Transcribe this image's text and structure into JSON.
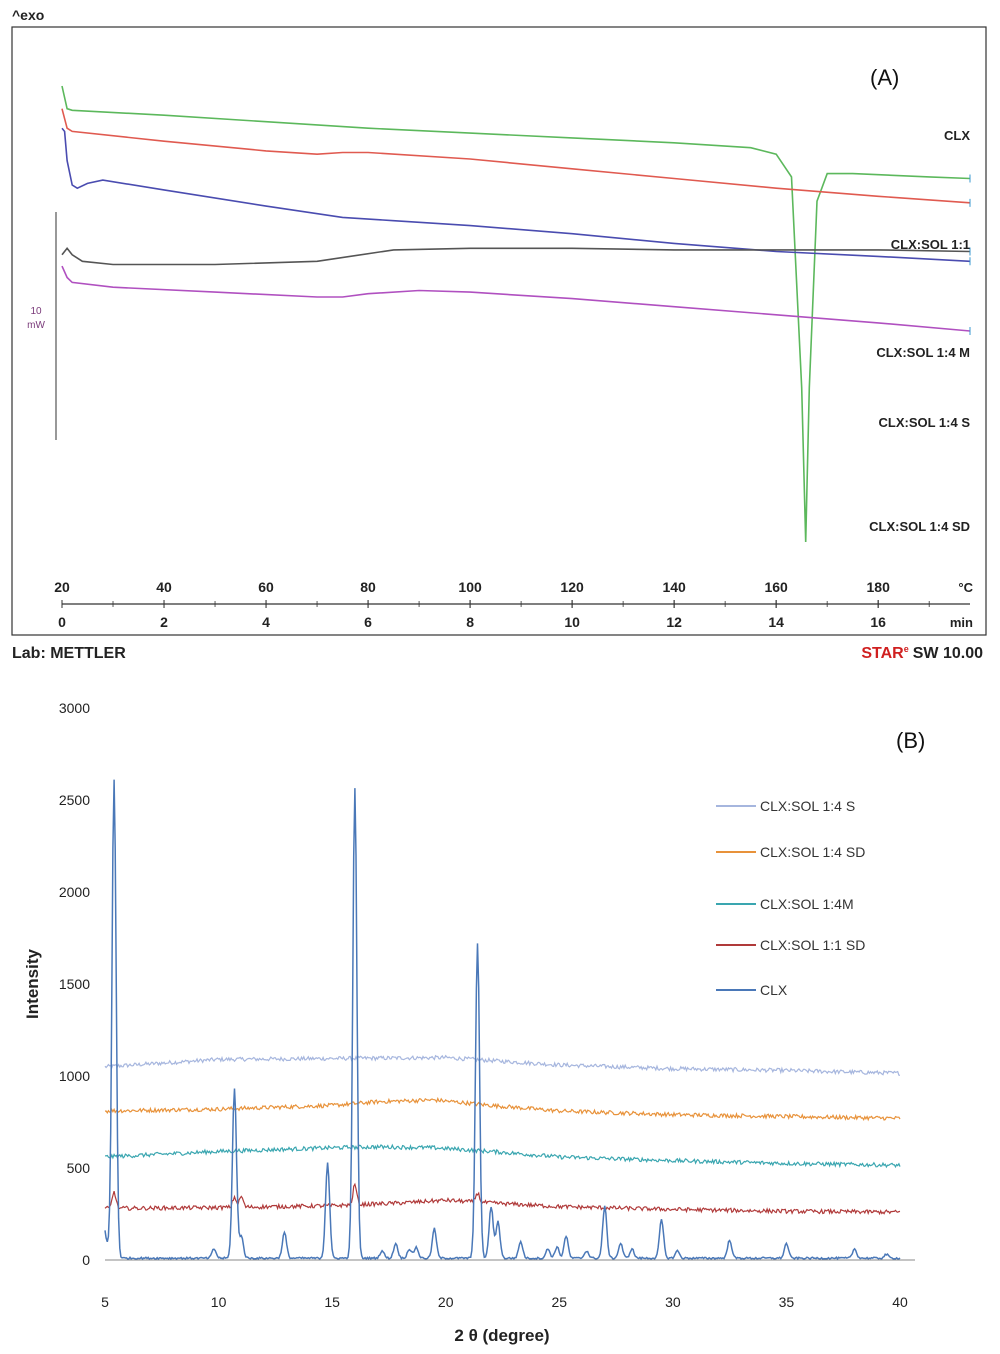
{
  "panelA": {
    "header": "^exo",
    "panel_letter": "(A)",
    "scale_value": "10",
    "scale_unit": "mW",
    "footer_left": "Lab: METTLER",
    "footer_right_brand": [
      "S",
      "TA",
      "R",
      "e"
    ],
    "footer_right_text": "SW 10.00"
  },
  "panelB": {
    "panel_letter": "(B)"
  },
  "chart_data": [
    {
      "type": "line",
      "panel": "A",
      "x_units": [
        "°C",
        "min"
      ],
      "x_temperature_ticks": [
        20,
        40,
        60,
        80,
        100,
        120,
        140,
        160,
        180
      ],
      "x_time_ticks": [
        0,
        2,
        4,
        6,
        8,
        10,
        12,
        14,
        16
      ],
      "xlim_temperature": [
        20,
        198
      ],
      "xlim_time": [
        0,
        17.8
      ],
      "colors": {
        "CLX": "#5cb85c",
        "CLX:SOL 1:1": "#e05a50",
        "CLX:SOL 1:4 M": "#4a4cb0",
        "CLX:SOL 1:4 S": "#555555",
        "CLX:SOL 1:4 SD": "#b050c0"
      },
      "series": [
        {
          "name": "CLX",
          "points": [
            [
              20,
              86
            ],
            [
              21,
              72
            ],
            [
              22,
              71
            ],
            [
              40,
              68
            ],
            [
              60,
              64
            ],
            [
              80,
              60
            ],
            [
              100,
              57
            ],
            [
              120,
              54
            ],
            [
              140,
              51
            ],
            [
              155,
              48
            ],
            [
              160,
              44
            ],
            [
              163,
              30
            ],
            [
              165,
              -100
            ],
            [
              165.8,
              -195
            ],
            [
              166.5,
              -100
            ],
            [
              168,
              15
            ],
            [
              170,
              32
            ],
            [
              175,
              32
            ],
            [
              190,
              30
            ],
            [
              198,
              29
            ]
          ]
        },
        {
          "name": "CLX:SOL 1:1",
          "points": [
            [
              20,
              72
            ],
            [
              21,
              60
            ],
            [
              22,
              58
            ],
            [
              40,
              52
            ],
            [
              60,
              46
            ],
            [
              70,
              44
            ],
            [
              75,
              45
            ],
            [
              80,
              45
            ],
            [
              100,
              41
            ],
            [
              120,
              35
            ],
            [
              140,
              29
            ],
            [
              160,
              23
            ],
            [
              180,
              18
            ],
            [
              198,
              14
            ]
          ]
        },
        {
          "name": "CLX:SOL 1:4 M",
          "points": [
            [
              20,
              60
            ],
            [
              20.5,
              58
            ],
            [
              21,
              40
            ],
            [
              22,
              25
            ],
            [
              23,
              23
            ],
            [
              25,
              26
            ],
            [
              28,
              28
            ],
            [
              40,
              22
            ],
            [
              60,
              12
            ],
            [
              75,
              5
            ],
            [
              85,
              3
            ],
            [
              100,
              0
            ],
            [
              120,
              -5
            ],
            [
              140,
              -11
            ],
            [
              160,
              -16
            ],
            [
              180,
              -19
            ],
            [
              198,
              -22
            ]
          ]
        },
        {
          "name": "CLX:SOL 1:4 S",
          "points": [
            [
              20,
              -18
            ],
            [
              21,
              -14
            ],
            [
              22,
              -18
            ],
            [
              24,
              -22
            ],
            [
              30,
              -24
            ],
            [
              50,
              -24
            ],
            [
              70,
              -22
            ],
            [
              85,
              -15
            ],
            [
              100,
              -14
            ],
            [
              120,
              -14
            ],
            [
              140,
              -15
            ],
            [
              160,
              -15
            ],
            [
              180,
              -15
            ],
            [
              198,
              -16
            ]
          ]
        },
        {
          "name": "CLX:SOL 1:4 SD",
          "points": [
            [
              20,
              -25
            ],
            [
              21,
              -32
            ],
            [
              22,
              -35
            ],
            [
              30,
              -38
            ],
            [
              50,
              -41
            ],
            [
              70,
              -44
            ],
            [
              75,
              -44
            ],
            [
              80,
              -42
            ],
            [
              90,
              -40
            ],
            [
              100,
              -41
            ],
            [
              120,
              -45
            ],
            [
              140,
              -50
            ],
            [
              160,
              -55
            ],
            [
              180,
              -60
            ],
            [
              198,
              -65
            ]
          ]
        }
      ]
    },
    {
      "type": "line",
      "panel": "B",
      "xlabel": "2 θ (degree)",
      "ylabel": "Intensity",
      "xlim": [
        5,
        40
      ],
      "ylim": [
        0,
        3000
      ],
      "x_ticks": [
        5,
        10,
        15,
        20,
        25,
        30,
        35,
        40
      ],
      "y_ticks": [
        0,
        500,
        1000,
        1500,
        2000,
        2500,
        3000
      ],
      "legend_position": "right",
      "legend": [
        "CLX:SOL 1:4 S",
        "CLX:SOL 1:4 SD",
        "CLX:SOL 1:4M",
        "CLX:SOL 1:1 SD",
        "CLX"
      ],
      "colors": {
        "CLX:SOL 1:4 S": "#a6b6de",
        "CLX:SOL 1:4 SD": "#e8923a",
        "CLX:SOL 1:4M": "#3aa6b0",
        "CLX:SOL 1:1 SD": "#b03a3a",
        "CLX": "#4a78b8"
      },
      "series": [
        {
          "name": "CLX:SOL 1:4 S",
          "points": [
            [
              5,
              1050
            ],
            [
              10,
              1090
            ],
            [
              15,
              1095
            ],
            [
              20,
              1100
            ],
            [
              25,
              1060
            ],
            [
              30,
              1040
            ],
            [
              35,
              1030
            ],
            [
              40,
              1015
            ]
          ]
        },
        {
          "name": "CLX:SOL 1:4 SD",
          "points": [
            [
              5,
              810
            ],
            [
              10,
              820
            ],
            [
              15,
              840
            ],
            [
              17,
              860
            ],
            [
              19.5,
              870
            ],
            [
              22,
              840
            ],
            [
              25,
              810
            ],
            [
              30,
              790
            ],
            [
              35,
              780
            ],
            [
              40,
              770
            ]
          ]
        },
        {
          "name": "CLX:SOL 1:4M",
          "points": [
            [
              5,
              560
            ],
            [
              10,
              590
            ],
            [
              15,
              610
            ],
            [
              17,
              615
            ],
            [
              19.5,
              610
            ],
            [
              22,
              590
            ],
            [
              25,
              560
            ],
            [
              30,
              540
            ],
            [
              35,
              525
            ],
            [
              40,
              515
            ]
          ]
        },
        {
          "name": "CLX:SOL 1:1 SD",
          "points": [
            [
              5,
              280
            ],
            [
              10,
              285
            ],
            [
              15,
              295
            ],
            [
              18,
              310
            ],
            [
              20,
              325
            ],
            [
              22,
              310
            ],
            [
              25,
              290
            ],
            [
              30,
              275
            ],
            [
              35,
              265
            ],
            [
              40,
              260
            ]
          ]
        },
        {
          "name": "CLX",
          "baseline": 10,
          "peaks": [
            [
              5.4,
              2600
            ],
            [
              9.8,
              50
            ],
            [
              10.7,
              920
            ],
            [
              11.0,
              120
            ],
            [
              12.9,
              140
            ],
            [
              14.8,
              520
            ],
            [
              16.0,
              2550
            ],
            [
              17.2,
              40
            ],
            [
              17.8,
              80
            ],
            [
              18.4,
              50
            ],
            [
              18.7,
              60
            ],
            [
              19.5,
              160
            ],
            [
              21.4,
              1710
            ],
            [
              22.0,
              280
            ],
            [
              22.3,
              200
            ],
            [
              23.3,
              90
            ],
            [
              24.5,
              50
            ],
            [
              24.9,
              60
            ],
            [
              25.3,
              120
            ],
            [
              26.2,
              40
            ],
            [
              27.0,
              280
            ],
            [
              27.7,
              80
            ],
            [
              28.2,
              50
            ],
            [
              29.5,
              210
            ],
            [
              30.2,
              40
            ],
            [
              32.5,
              100
            ],
            [
              35.0,
              80
            ],
            [
              38.0,
              50
            ],
            [
              39.4,
              20
            ]
          ]
        }
      ]
    }
  ]
}
